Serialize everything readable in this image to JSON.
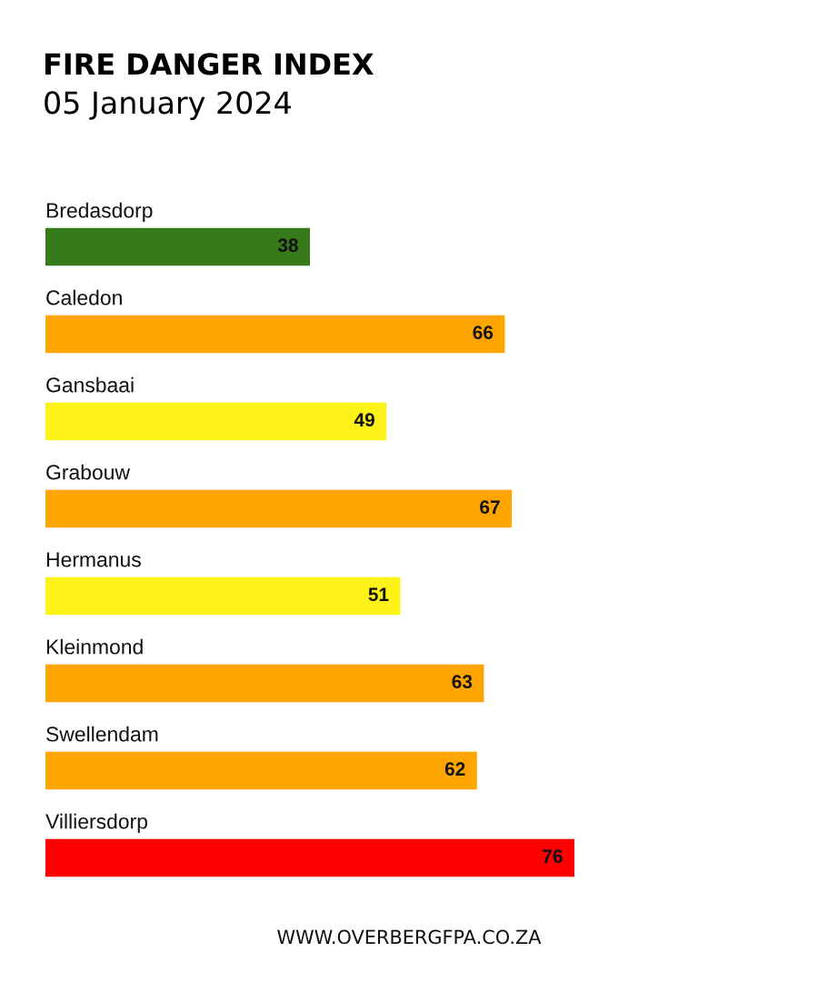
{
  "chart_data": {
    "type": "bar",
    "orientation": "horizontal",
    "title": "FIRE DANGER INDEX",
    "subtitle": "05 January 2024",
    "categories": [
      "Bredasdorp",
      "Caledon",
      "Gansbaai",
      "Grabouw",
      "Hermanus",
      "Kleinmond",
      "Swellendam",
      "Villiersdorp"
    ],
    "values": [
      38,
      66,
      49,
      67,
      51,
      63,
      62,
      76
    ],
    "colors": [
      "#367a1b",
      "#ffa500",
      "#fdf217",
      "#ffa500",
      "#fdf217",
      "#ffa500",
      "#ffa500",
      "#ff0000"
    ],
    "data_labels": true,
    "tick_labels": "y",
    "annotations": [
      "WWW.OVERBERGFPA.CO.ZA"
    ]
  }
}
